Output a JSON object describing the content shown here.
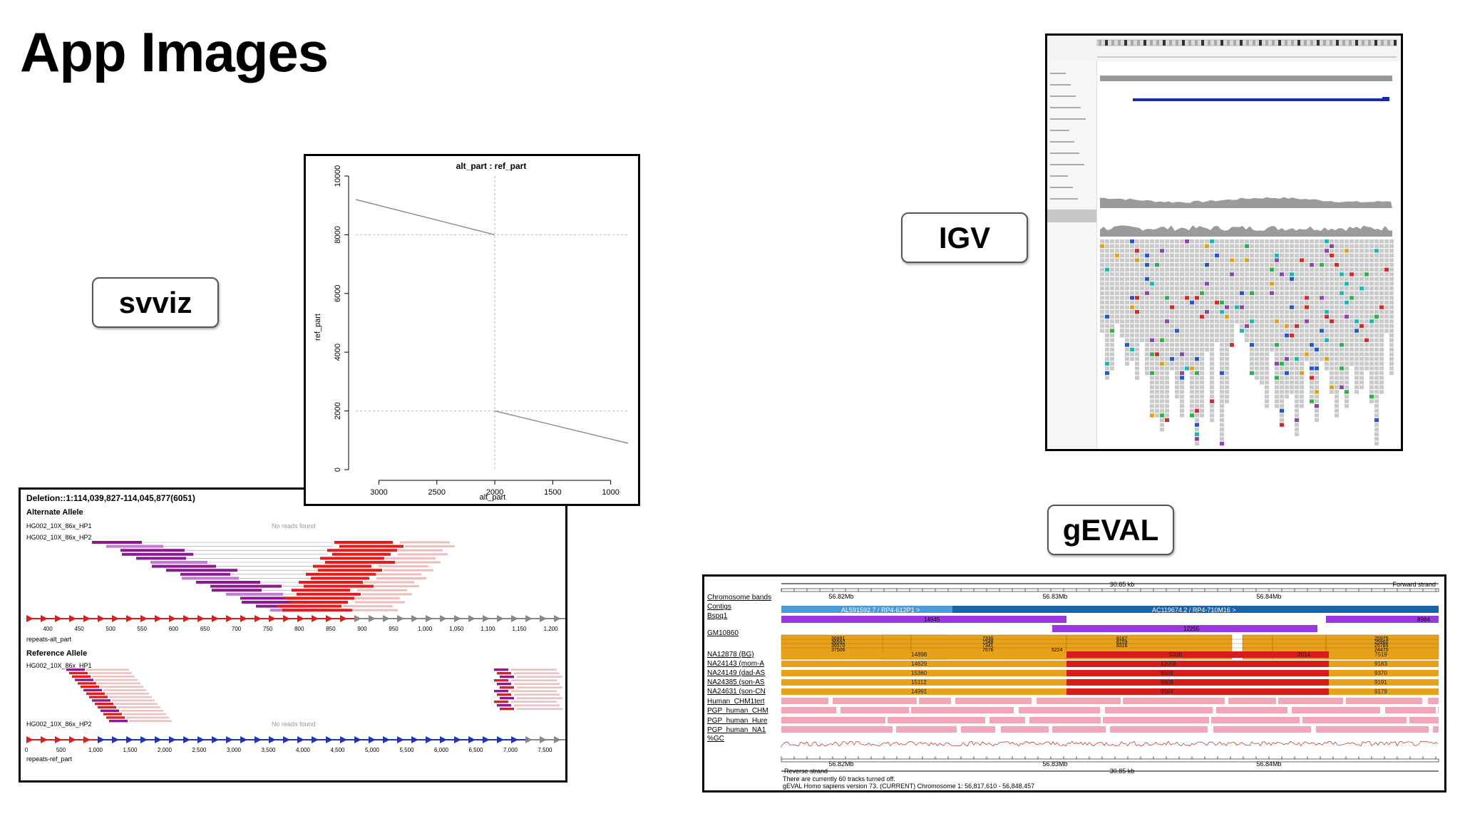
{
  "slide": {
    "title": "App Images"
  },
  "labels": {
    "svviz": "svviz",
    "igv": "IGV",
    "geval": "gEVAL"
  },
  "dotplot": {
    "title": "alt_part : ref_part",
    "ylabel": "ref_part",
    "xlabel": "alt_part",
    "chart_data": {
      "type": "line",
      "title": "alt_part : ref_part",
      "xlabel": "alt_part",
      "ylabel": "ref_part",
      "x_reversed": true,
      "xlim": [
        3200,
        850
      ],
      "ylim": [
        0,
        10000
      ],
      "xticks": [
        3000,
        2500,
        2000,
        1500,
        1000
      ],
      "yticks": [
        0,
        2000,
        4000,
        6000,
        8000,
        10000
      ],
      "series": [
        {
          "points": [
            [
              3200,
              9200
            ],
            [
              2000,
              8000
            ]
          ]
        },
        {
          "points": [
            [
              2000,
              2000
            ],
            [
              850,
              900
            ]
          ]
        }
      ],
      "guides": {
        "x": 2000,
        "y": [
          2000,
          8000
        ]
      }
    }
  },
  "svviz_panel": {
    "header": "Deletion::1:114,039,827-114,045,877(6051)",
    "alt_allele": "Alternate Allele",
    "ref_allele": "Reference Allele",
    "track_hp1": "HG002_10X_86x_HP1",
    "track_hp2": "HG002_10X_86x_HP2",
    "no_reads": "No reads found",
    "no_reads_2": "No reads found",
    "repeats_alt": "repeats-alt_part",
    "repeats_ref": "repeats-ref_part",
    "alt_ticks": [
      "400",
      "450",
      "500",
      "550",
      "600",
      "650",
      "700",
      "750",
      "800",
      "850",
      "900",
      "950",
      "1,000",
      "1,050",
      "1,100",
      "1,150",
      "1,200"
    ],
    "ref_ticks": [
      "0",
      "500",
      "1,000",
      "1,500",
      "2,000",
      "2,500",
      "3,000",
      "3,500",
      "4,000",
      "4,500",
      "5,000",
      "5,500",
      "6,000",
      "6,500",
      "7,000",
      "7,500"
    ]
  },
  "geval": {
    "scale_top": "30.85 kb",
    "scale_bottom": "30.85 kb",
    "forward": "Forward strand",
    "reverse": "Reverse strand",
    "pos_ticks": [
      "56.82Mb",
      "56.83Mb",
      "56.84Mb"
    ],
    "contig_left": "AL591592.7 / RP4-612P1 >",
    "contig_right": "AC119674.2 / RP4-710M16 >",
    "tracks": [
      "Chromosome bands",
      "Contigs",
      "Bspq1",
      "GM10860",
      "NA12878 (BG)",
      "NA24143 (mom-A",
      "NA24149 (dad-AS",
      "NA24385 (son-AS",
      "NA24631 (son-CN",
      "Human_CHM1tert",
      "PGP_human_CHM",
      "PGP_human_Hure",
      "PGP_human_NA1",
      "%GC"
    ],
    "bspq_values": [
      "14945",
      "12255",
      "8984"
    ],
    "gm_values": [
      "36991",
      "36592",
      "36570",
      "37506",
      "7330",
      "7348",
      "7341",
      "7676",
      "8167",
      "8159",
      "8316",
      "5224",
      "25975",
      "25960",
      "25785",
      "24470"
    ],
    "na_values": [
      [
        "14898",
        "5208",
        "2014",
        "7519"
      ],
      [
        "14629",
        "12058",
        "9183"
      ],
      [
        "15360",
        "9559",
        "9370"
      ],
      [
        "15112",
        "9608",
        "9191"
      ],
      [
        "14991",
        "9584",
        "9179"
      ]
    ],
    "footer1": "There are currently 60 tracks turned off.",
    "footer2": "gEVAL Homo sapiens version 73. (CURRENT) Chromosome 1: 56,817,610 - 56,848,457"
  }
}
